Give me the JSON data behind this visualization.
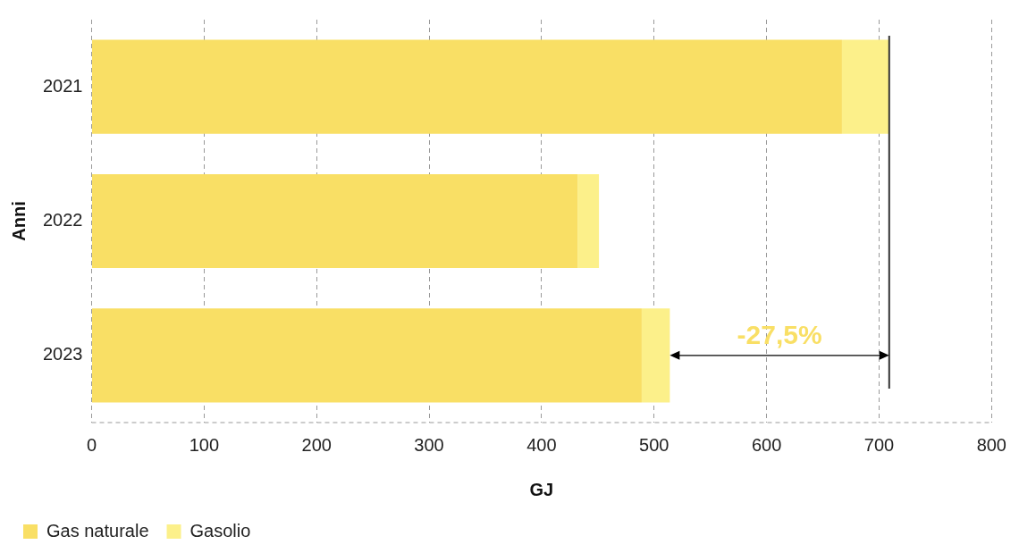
{
  "chart_data": {
    "type": "bar",
    "orientation": "horizontal",
    "stacked": true,
    "categories": [
      "2021",
      "2022",
      "2023"
    ],
    "series": [
      {
        "name": "Gas naturale",
        "color": "#f9df65",
        "values": [
          667,
          432,
          489
        ]
      },
      {
        "name": "Gasolio",
        "color": "#fcf08a",
        "values": [
          42,
          19,
          25
        ]
      }
    ],
    "xlim": [
      0,
      800
    ],
    "xticks": [
      0,
      100,
      200,
      300,
      400,
      500,
      600,
      700,
      800
    ],
    "xlabel": "GJ",
    "ylabel": "Anni",
    "grid": "x",
    "legend": "bottom left",
    "ref_lines": [
      {
        "axis": "x",
        "value": 709,
        "color": "#333333"
      }
    ],
    "annotations": [
      "-27,5%"
    ]
  }
}
